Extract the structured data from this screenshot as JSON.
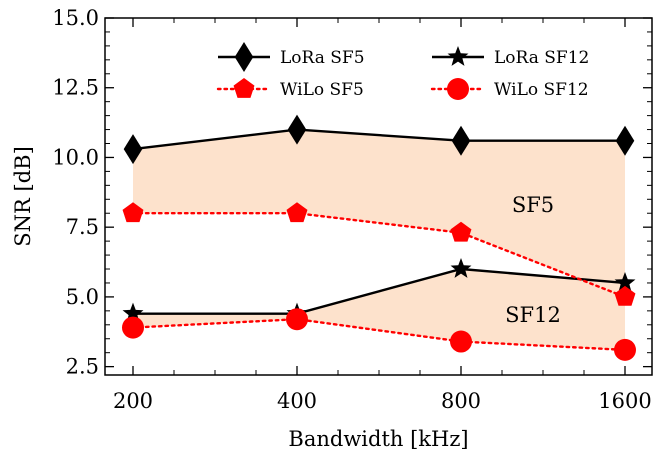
{
  "chart_data": {
    "type": "line",
    "xlabel": "Bandwidth [kHz]",
    "ylabel": "SNR [dB]",
    "categories": [
      "200",
      "400",
      "800",
      "1600"
    ],
    "ylim": [
      2.2,
      15.0
    ],
    "yticks": [
      "2.5",
      "5.0",
      "7.5",
      "10.0",
      "12.5",
      "15.0"
    ],
    "ytick_values": [
      2.5,
      5.0,
      7.5,
      10.0,
      12.5,
      15.0
    ],
    "grid": false,
    "legend_position": "top-right",
    "series": [
      {
        "name": "LoRa SF5",
        "values": [
          10.3,
          11.0,
          10.6,
          10.6
        ],
        "color": "#000000",
        "line_style": "solid",
        "marker": "diamond"
      },
      {
        "name": "LoRa SF12",
        "values": [
          4.4,
          4.4,
          6.0,
          5.5
        ],
        "color": "#000000",
        "line_style": "solid",
        "marker": "star"
      },
      {
        "name": "WiLo SF5",
        "values": [
          8.0,
          8.0,
          7.3,
          5.0
        ],
        "color": "#ff0000",
        "line_style": "dotted",
        "marker": "pentagon"
      },
      {
        "name": "WiLo SF12",
        "values": [
          3.9,
          4.2,
          3.4,
          3.1
        ],
        "color": "#ff0000",
        "line_style": "dotted",
        "marker": "circle"
      }
    ],
    "shaded_regions": [
      {
        "upper": "LoRa SF5",
        "lower": "WiLo SF5",
        "color": "#fde2cc"
      },
      {
        "upper": "LoRa SF12",
        "lower": "WiLo SF12",
        "color": "#fde2cc"
      }
    ],
    "annotations": [
      {
        "text": "SF5",
        "x": "1131",
        "y": 8.3
      },
      {
        "text": "SF12",
        "x": "1131",
        "y": 4.35
      }
    ]
  }
}
